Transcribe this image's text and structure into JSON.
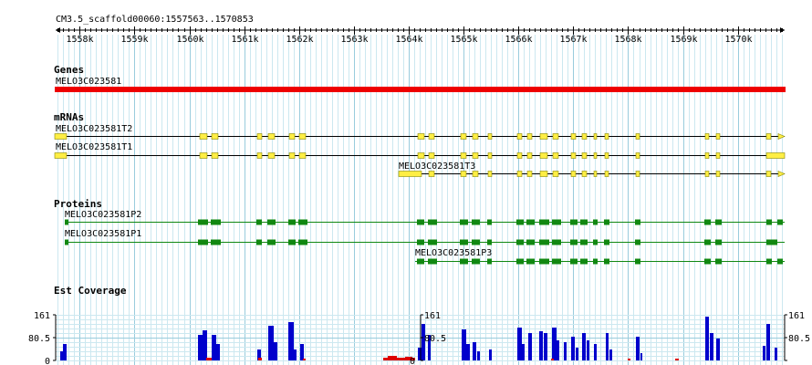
{
  "location": "CM3.5_scaffold00060:1557563..1570853",
  "ruler": {
    "start": 1557563,
    "end": 1570853,
    "ticks": [
      "1558k",
      "1559k",
      "1560k",
      "1561k",
      "1562k",
      "1563k",
      "1564k",
      "1565k",
      "1566k",
      "1567k",
      "1568k",
      "1569k",
      "1570k"
    ]
  },
  "tracks": {
    "genes": {
      "title": "Genes",
      "gene_label": "MELO3C023581",
      "color": "#ee0000"
    },
    "mrnas": {
      "title": "mRNAs",
      "color": "#ffee44",
      "items": [
        {
          "label": "MELO3C023581T2"
        },
        {
          "label": "MELO3C023581T1"
        },
        {
          "label": "MELO3C023581T3"
        }
      ]
    },
    "proteins": {
      "title": "Proteins",
      "color": "#118811",
      "items": [
        {
          "label": "MELO3C023581P2"
        },
        {
          "label": "MELO3C023581P1"
        },
        {
          "label": "MELO3C023581P3"
        }
      ]
    },
    "coverage": {
      "title": "Est Coverage",
      "scale_labels": [
        "161",
        "80.5",
        "0"
      ],
      "bar_color": "#0000cc",
      "low_color": "#dd0000"
    }
  }
}
